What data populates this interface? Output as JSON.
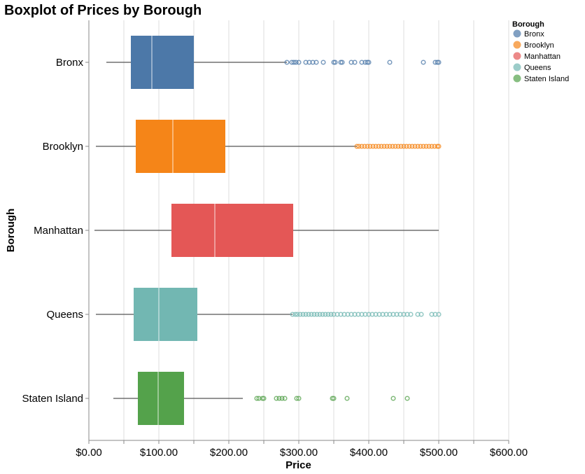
{
  "chart_data": {
    "type": "boxplot",
    "title": "Boxplot of Prices by Borough",
    "xlabel": "Price",
    "ylabel": "Borough",
    "xlim": [
      0,
      600
    ],
    "x_ticks": [
      0,
      100,
      200,
      300,
      400,
      500,
      600
    ],
    "x_tick_labels": [
      "$0.00",
      "$100.00",
      "$200.00",
      "$300.00",
      "$400.00",
      "$500.00",
      "$600.00"
    ],
    "grid": true,
    "legend": {
      "title": "Borough",
      "placement": "top-right"
    },
    "series": [
      {
        "name": "Bronx",
        "color": "#4c78a8",
        "whisker_low": 25,
        "q1": 60,
        "median": 90,
        "q3": 150,
        "whisker_high": 283,
        "outliers": [
          283,
          290,
          293,
          296,
          300,
          310,
          315,
          320,
          325,
          335,
          350,
          352,
          360,
          362,
          375,
          380,
          390,
          395,
          398,
          400,
          430,
          478,
          495,
          498,
          500
        ]
      },
      {
        "name": "Brooklyn",
        "color": "#f58518",
        "whisker_low": 10,
        "q1": 67,
        "median": 120,
        "q3": 195,
        "whisker_high": 383,
        "outliers": [
          383,
          386,
          390,
          394,
          398,
          402,
          406,
          410,
          414,
          418,
          422,
          426,
          430,
          434,
          438,
          442,
          446,
          450,
          454,
          458,
          462,
          466,
          470,
          474,
          478,
          482,
          486,
          490,
          494,
          498,
          500
        ]
      },
      {
        "name": "Manhattan",
        "color": "#e45756",
        "whisker_low": 8,
        "q1": 118,
        "median": 180,
        "q3": 292,
        "whisker_high": 500,
        "outliers": []
      },
      {
        "name": "Queens",
        "color": "#72b7b2",
        "whisker_low": 10,
        "q1": 64,
        "median": 100,
        "q3": 155,
        "whisker_high": 291,
        "outliers": [
          291,
          295,
          298,
          302,
          306,
          310,
          314,
          318,
          322,
          326,
          330,
          334,
          338,
          342,
          346,
          350,
          355,
          360,
          365,
          370,
          375,
          380,
          385,
          390,
          395,
          400,
          405,
          410,
          415,
          420,
          425,
          430,
          435,
          440,
          445,
          450,
          455,
          460,
          470,
          475,
          490,
          495,
          500
        ]
      },
      {
        "name": "Staten Island",
        "color": "#54a24b",
        "whisker_low": 35,
        "q1": 70,
        "median": 99,
        "q3": 136,
        "whisker_high": 220,
        "outliers": [
          240,
          243,
          248,
          250,
          268,
          272,
          276,
          280,
          297,
          300,
          348,
          350,
          369,
          435,
          455
        ]
      }
    ]
  }
}
